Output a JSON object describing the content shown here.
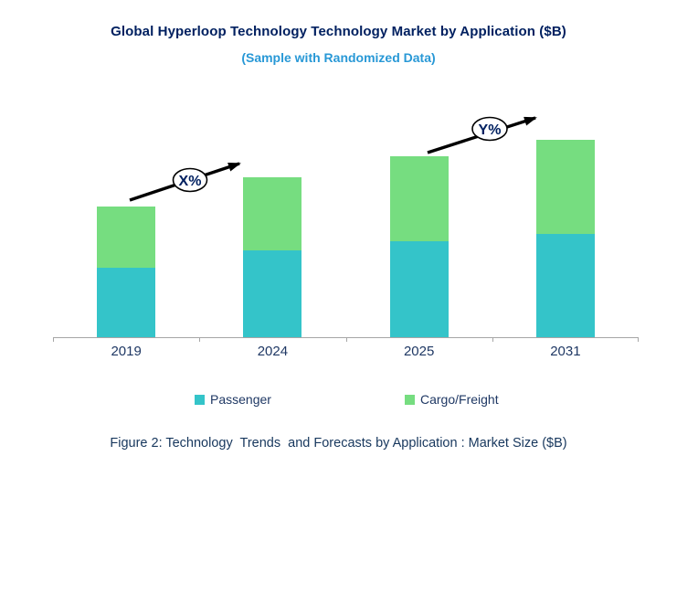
{
  "header": {
    "title": "Global Hyperloop Technology Technology Market by Application ($B)",
    "subtitle": "(Sample with Randomized Data)",
    "title_color": "#002060",
    "subtitle_color": "#2898D6"
  },
  "chart_data": {
    "type": "bar",
    "stacked": true,
    "categories": [
      "2019",
      "2024",
      "2025",
      "2031"
    ],
    "series": [
      {
        "name": "Passenger",
        "color": "#34C4C9",
        "values": [
          7.6,
          9.5,
          10.5,
          11.3
        ]
      },
      {
        "name": "Cargo/Freight",
        "color": "#76DD80",
        "values": [
          6.7,
          8.0,
          9.3,
          10.3
        ]
      }
    ],
    "title": "Global Hyperloop Technology Technology Market by Application ($B)",
    "subtitle": "(Sample with Randomized Data)",
    "xlabel": "",
    "ylabel": "",
    "ylim": [
      0,
      24
    ],
    "y_axis_visible": false,
    "gridlines": false,
    "legend_position": "bottom",
    "axis_color": "#A6A6A6",
    "tick_label_color": "#1F3864",
    "annotations": [
      {
        "label": "X%",
        "type": "growth-arrow",
        "between": [
          "2019",
          "2024"
        ]
      },
      {
        "label": "Y%",
        "type": "growth-arrow",
        "between": [
          "2025",
          "2031"
        ]
      }
    ]
  },
  "caption": {
    "text": "Figure 2: Technology  Trends  and Forecasts by Application : Market Size ($B)",
    "color": "#17375D"
  }
}
